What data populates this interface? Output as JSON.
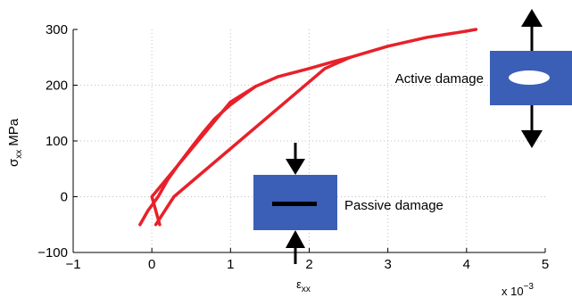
{
  "chart_data": {
    "type": "line",
    "xlabel_main": "ε",
    "xlabel_sub": "xx",
    "ylabel_main": "σ",
    "ylabel_sub": "xx",
    "ylabel_unit": "MPa",
    "x_multiplier_base": "x 10",
    "x_multiplier_exp": "−3",
    "xlim": [
      -1,
      5
    ],
    "ylim": [
      -100,
      300
    ],
    "x_ticks": [
      -1,
      0,
      1,
      2,
      3,
      4,
      5
    ],
    "x_tick_labels": [
      "−1",
      "0",
      "1",
      "2",
      "3",
      "4",
      "5"
    ],
    "y_ticks": [
      -100,
      0,
      100,
      200,
      300
    ],
    "y_tick_labels": [
      "−100",
      "0",
      "100",
      "200",
      "300"
    ],
    "grid": true,
    "grid_style": "dotted",
    "series": [
      {
        "color": "#e8202a",
        "x": [
          -0.15,
          -0.05,
          0.08,
          0.2,
          0.35,
          0.5,
          0.65,
          0.8,
          1.0,
          1.2,
          1.32
        ],
        "y": [
          -50,
          -25,
          0,
          30,
          60,
          88,
          115,
          140,
          165,
          186,
          198
        ]
      },
      {
        "color": "#e8202a",
        "x": [
          1.32,
          1.0,
          0.0,
          0.1
        ],
        "y": [
          198,
          170,
          0,
          -50
        ]
      },
      {
        "color": "#e8202a",
        "x": [
          1.32,
          1.6,
          2.0,
          2.3,
          2.52
        ],
        "y": [
          198,
          215,
          230,
          242,
          250
        ]
      },
      {
        "color": "#e8202a",
        "x": [
          2.52,
          2.2,
          0.28,
          0.05
        ],
        "y": [
          250,
          230,
          0,
          -50
        ]
      },
      {
        "color": "#e8202a",
        "x": [
          2.52,
          3.0,
          3.5,
          4.0,
          4.12
        ],
        "y": [
          250,
          270,
          286,
          297,
          300
        ]
      }
    ],
    "annotations": {
      "active_label": "Active damage",
      "passive_label": "Passive damage"
    },
    "colors": {
      "curve": "#e8202a",
      "box": "#3b5fb6",
      "axis": "#000000",
      "grid": "#bfbfbf"
    }
  }
}
